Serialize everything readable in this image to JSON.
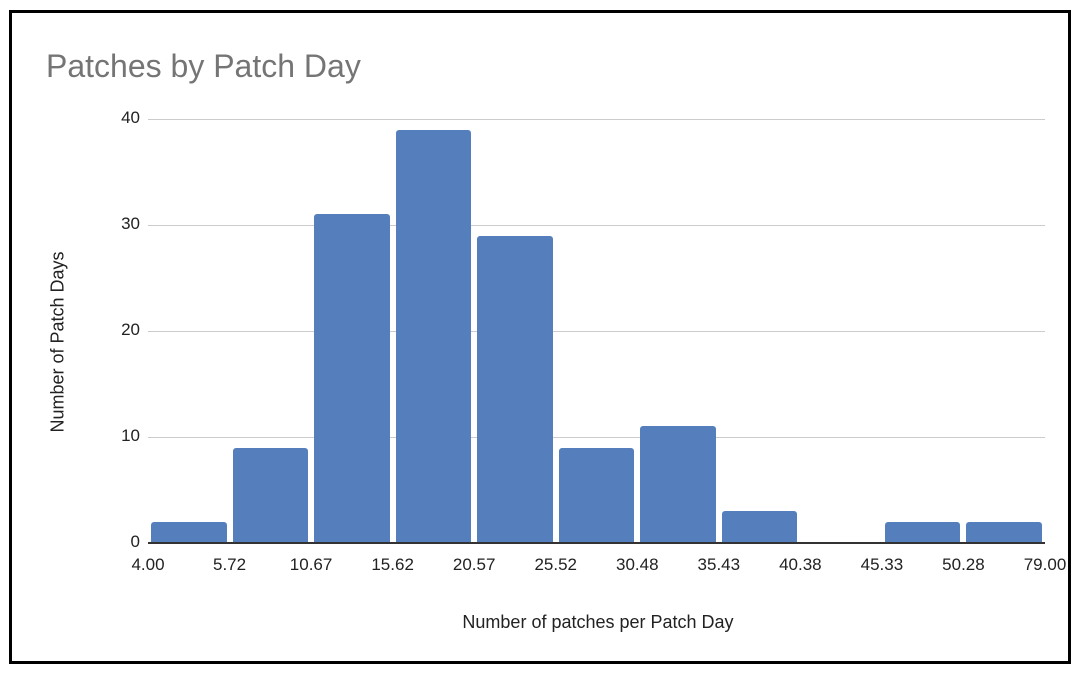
{
  "chart_data": {
    "type": "bar",
    "subtype": "histogram",
    "title": "Patches by Patch Day",
    "xlabel": "Number of patches per Patch Day",
    "ylabel": "Number of Patch Days",
    "x_tick_labels": [
      "4.00",
      "5.72",
      "10.67",
      "15.62",
      "20.57",
      "25.52",
      "30.48",
      "35.43",
      "40.38",
      "45.33",
      "50.28",
      "79.00"
    ],
    "categories": [
      "4.00-5.72",
      "5.72-10.67",
      "10.67-15.62",
      "15.62-20.57",
      "20.57-25.52",
      "25.52-30.48",
      "30.48-35.43",
      "35.43-40.38",
      "40.38-45.33",
      "45.33-50.28",
      "50.28-79.00"
    ],
    "values": [
      2,
      9,
      31,
      39,
      29,
      9,
      11,
      3,
      0,
      2,
      2
    ],
    "y_ticks": [
      0,
      10,
      20,
      30,
      40
    ],
    "ylim": [
      0,
      40
    ],
    "grid": true,
    "legend": null,
    "colors": {
      "bar": "#557ebd",
      "title": "#757575",
      "grid": "#cccccc"
    }
  }
}
